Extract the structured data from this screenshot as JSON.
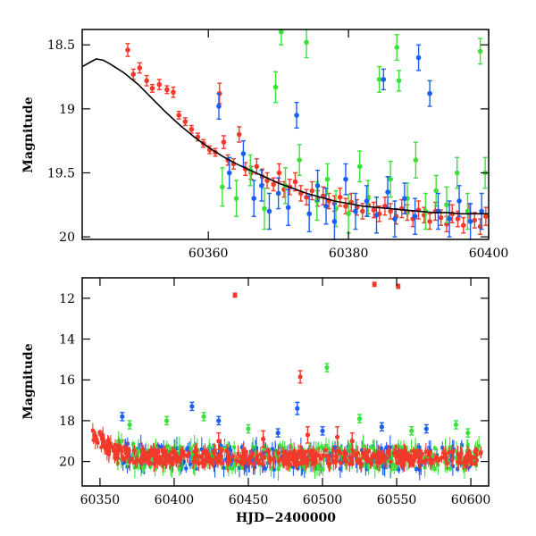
{
  "chart_data": [
    {
      "type": "scatter",
      "panel": "top",
      "title": "",
      "xlabel": "",
      "ylabel": "Magnitude",
      "xlim": [
        60342,
        60400
      ],
      "ylim": [
        20.02,
        18.38
      ],
      "y_inverted": true,
      "grid": false,
      "x_ticks": [
        {
          "value": 60360,
          "label": "60360"
        },
        {
          "value": 60380,
          "label": "60380"
        },
        {
          "value": 60400,
          "label": "60400"
        }
      ],
      "y_ticks": [
        {
          "value": 18.5,
          "label": "18.5"
        },
        {
          "value": 19,
          "label": "19"
        },
        {
          "value": 19.5,
          "label": "19.5"
        },
        {
          "value": 20,
          "label": "20"
        }
      ],
      "series_colors": {
        "red": "#f23a2a",
        "green": "#3be03b",
        "blue": "#1a5ef2",
        "model": "#000000"
      },
      "series": [
        {
          "color_key": "red",
          "points": [
            [
              60348.5,
              18.54,
              0.05
            ],
            [
              60349.3,
              18.73,
              0.04
            ],
            [
              60350.2,
              18.68,
              0.04
            ],
            [
              60351.2,
              18.78,
              0.04
            ],
            [
              60352.0,
              18.84,
              0.03
            ],
            [
              60353.0,
              18.81,
              0.04
            ],
            [
              60354.1,
              18.85,
              0.03
            ],
            [
              60355.0,
              18.87,
              0.04
            ],
            [
              60355.8,
              19.05,
              0.03
            ],
            [
              60356.7,
              19.1,
              0.03
            ],
            [
              60357.6,
              19.16,
              0.03
            ],
            [
              60358.5,
              19.22,
              0.03
            ],
            [
              60359.3,
              19.27,
              0.03
            ],
            [
              60360.2,
              19.32,
              0.03
            ],
            [
              60361.0,
              19.34,
              0.03
            ],
            [
              60361.6,
              18.88,
              0.08
            ],
            [
              60362.2,
              19.26,
              0.05
            ],
            [
              60362.8,
              19.4,
              0.04
            ],
            [
              60363.6,
              19.43,
              0.04
            ],
            [
              60364.4,
              19.2,
              0.06
            ],
            [
              60365.3,
              19.47,
              0.05
            ],
            [
              60366.1,
              19.5,
              0.05
            ],
            [
              60366.9,
              19.45,
              0.06
            ],
            [
              60367.7,
              19.53,
              0.06
            ],
            [
              60368.4,
              19.56,
              0.06
            ],
            [
              60369.3,
              19.59,
              0.05
            ],
            [
              60370.1,
              19.5,
              0.07
            ],
            [
              60370.8,
              19.63,
              0.06
            ],
            [
              60371.6,
              19.61,
              0.06
            ],
            [
              60372.4,
              19.57,
              0.07
            ],
            [
              60373.2,
              19.66,
              0.06
            ],
            [
              60374.0,
              19.69,
              0.06
            ],
            [
              60374.8,
              19.64,
              0.07
            ],
            [
              60375.6,
              19.7,
              0.06
            ],
            [
              60376.4,
              19.68,
              0.07
            ],
            [
              60377.2,
              19.72,
              0.06
            ],
            [
              60378.0,
              19.74,
              0.06
            ],
            [
              60378.8,
              19.69,
              0.07
            ],
            [
              60379.6,
              19.76,
              0.06
            ],
            [
              60380.4,
              19.73,
              0.07
            ],
            [
              60381.2,
              19.77,
              0.06
            ],
            [
              60382.0,
              19.8,
              0.06
            ],
            [
              60382.8,
              19.75,
              0.07
            ],
            [
              60383.6,
              19.79,
              0.06
            ],
            [
              60384.4,
              19.82,
              0.06
            ],
            [
              60385.2,
              19.76,
              0.07
            ],
            [
              60386.0,
              19.8,
              0.06
            ],
            [
              60386.8,
              19.84,
              0.06
            ],
            [
              60387.6,
              19.78,
              0.07
            ],
            [
              60388.4,
              19.81,
              0.06
            ],
            [
              60389.2,
              19.86,
              0.06
            ],
            [
              60390.0,
              19.79,
              0.07
            ],
            [
              60390.8,
              19.83,
              0.06
            ],
            [
              60391.6,
              19.88,
              0.06
            ],
            [
              60392.4,
              19.8,
              0.07
            ],
            [
              60393.2,
              19.85,
              0.06
            ],
            [
              60394.0,
              19.9,
              0.06
            ],
            [
              60394.8,
              19.82,
              0.07
            ],
            [
              60395.6,
              19.86,
              0.06
            ],
            [
              60396.4,
              19.91,
              0.06
            ],
            [
              60397.2,
              19.81,
              0.07
            ],
            [
              60398.0,
              19.87,
              0.06
            ],
            [
              60398.8,
              19.92,
              0.06
            ],
            [
              60399.6,
              19.84,
              0.07
            ]
          ]
        },
        {
          "color_key": "green",
          "points": [
            [
              60362.0,
              19.61,
              0.15
            ],
            [
              60364.0,
              19.7,
              0.14
            ],
            [
              60366.0,
              19.48,
              0.12
            ],
            [
              60368.0,
              19.78,
              0.16
            ],
            [
              60369.6,
              18.83,
              0.12
            ],
            [
              60370.4,
              18.4,
              0.1
            ],
            [
              60371.0,
              19.6,
              0.14
            ],
            [
              60373.0,
              19.4,
              0.12
            ],
            [
              60374.0,
              18.48,
              0.12
            ],
            [
              60375.5,
              19.72,
              0.15
            ],
            [
              60377.0,
              19.55,
              0.12
            ],
            [
              60378.2,
              19.78,
              0.14
            ],
            [
              60380.0,
              19.82,
              0.15
            ],
            [
              60381.6,
              19.45,
              0.12
            ],
            [
              60382.8,
              19.7,
              0.14
            ],
            [
              60384.4,
              18.77,
              0.1
            ],
            [
              60386.0,
              19.55,
              0.14
            ],
            [
              60386.9,
              18.52,
              0.1
            ],
            [
              60387.2,
              18.78,
              0.08
            ],
            [
              60388.4,
              19.7,
              0.12
            ],
            [
              60389.6,
              19.4,
              0.14
            ],
            [
              60391.0,
              19.8,
              0.14
            ],
            [
              60392.5,
              19.64,
              0.12
            ],
            [
              60394.0,
              19.75,
              0.14
            ],
            [
              60395.5,
              19.5,
              0.12
            ],
            [
              60397.0,
              19.8,
              0.14
            ],
            [
              60398.8,
              18.55,
              0.1
            ],
            [
              60399.5,
              19.5,
              0.12
            ]
          ]
        },
        {
          "color_key": "blue",
          "points": [
            [
              60361.5,
              18.98,
              0.1
            ],
            [
              60363.0,
              19.5,
              0.12
            ],
            [
              60365.0,
              19.35,
              0.1
            ],
            [
              60366.5,
              19.7,
              0.14
            ],
            [
              60367.6,
              19.6,
              0.12
            ],
            [
              60368.7,
              19.8,
              0.14
            ],
            [
              60370.0,
              19.66,
              0.12
            ],
            [
              60371.4,
              19.77,
              0.14
            ],
            [
              60372.6,
              19.05,
              0.1
            ],
            [
              60374.4,
              19.82,
              0.14
            ],
            [
              60375.6,
              19.6,
              0.12
            ],
            [
              60376.8,
              19.76,
              0.14
            ],
            [
              60378.0,
              19.88,
              0.14
            ],
            [
              60379.6,
              19.55,
              0.12
            ],
            [
              60381.0,
              19.8,
              0.14
            ],
            [
              60382.6,
              19.72,
              0.12
            ],
            [
              60384.0,
              19.83,
              0.14
            ],
            [
              60385.0,
              18.77,
              0.08
            ],
            [
              60385.6,
              19.65,
              0.12
            ],
            [
              60386.6,
              19.86,
              0.14
            ],
            [
              60388.0,
              19.7,
              0.12
            ],
            [
              60389.5,
              19.84,
              0.14
            ],
            [
              60390.0,
              18.6,
              0.1
            ],
            [
              60391.6,
              18.88,
              0.1
            ],
            [
              60392.8,
              19.8,
              0.14
            ],
            [
              60394.4,
              19.86,
              0.14
            ],
            [
              60395.8,
              19.72,
              0.12
            ],
            [
              60397.4,
              19.88,
              0.14
            ],
            [
              60399.0,
              19.8,
              0.14
            ]
          ]
        }
      ],
      "model_curve": [
        [
          60342.0,
          18.67
        ],
        [
          60343.0,
          18.64
        ],
        [
          60344.0,
          18.61
        ],
        [
          60345.0,
          18.62
        ],
        [
          60346.0,
          18.65
        ],
        [
          60348.0,
          18.72
        ],
        [
          60350.0,
          18.81
        ],
        [
          60352.0,
          18.92
        ],
        [
          60354.0,
          19.03
        ],
        [
          60356.0,
          19.13
        ],
        [
          60358.0,
          19.22
        ],
        [
          60360.0,
          19.3
        ],
        [
          60362.0,
          19.37
        ],
        [
          60364.0,
          19.43
        ],
        [
          60366.0,
          19.48
        ],
        [
          60368.0,
          19.53
        ],
        [
          60370.0,
          19.58
        ],
        [
          60372.0,
          19.62
        ],
        [
          60374.0,
          19.66
        ],
        [
          60376.0,
          19.69
        ],
        [
          60378.0,
          19.72
        ],
        [
          60380.0,
          19.74
        ],
        [
          60382.0,
          19.76
        ],
        [
          60384.0,
          19.77
        ],
        [
          60386.0,
          19.78
        ],
        [
          60388.0,
          19.79
        ],
        [
          60390.0,
          19.8
        ],
        [
          60392.0,
          19.81
        ],
        [
          60394.0,
          19.81
        ],
        [
          60396.0,
          19.82
        ],
        [
          60398.0,
          19.82
        ],
        [
          60400.0,
          19.82
        ]
      ]
    },
    {
      "type": "scatter",
      "panel": "bottom",
      "title": "",
      "xlabel": "HJD−2400000",
      "ylabel": "Magnitude",
      "xlim": [
        60338,
        60612
      ],
      "ylim": [
        21.2,
        11.0
      ],
      "y_inverted": true,
      "grid": false,
      "x_ticks": [
        {
          "value": 60350,
          "label": "60350"
        },
        {
          "value": 60400,
          "label": "60400"
        },
        {
          "value": 60450,
          "label": "60450"
        },
        {
          "value": 60500,
          "label": "60500"
        },
        {
          "value": 60550,
          "label": "60550"
        },
        {
          "value": 60600,
          "label": "60600"
        }
      ],
      "y_ticks": [
        {
          "value": 12,
          "label": "12"
        },
        {
          "value": 14,
          "label": "14"
        },
        {
          "value": 16,
          "label": "16"
        },
        {
          "value": 18,
          "label": "18"
        },
        {
          "value": 20,
          "label": "20"
        }
      ],
      "dense_trend": [
        [
          60345,
          18.6
        ],
        [
          60350,
          18.9
        ],
        [
          60355,
          19.3
        ],
        [
          60360,
          19.5
        ],
        [
          60370,
          19.7
        ],
        [
          60380,
          19.8
        ],
        [
          60400,
          19.8
        ],
        [
          60450,
          19.8
        ],
        [
          60500,
          19.8
        ],
        [
          60550,
          19.8
        ],
        [
          60605,
          19.8
        ]
      ],
      "series": [
        {
          "color_key": "red",
          "points": [
            [
              60441,
              11.85,
              0.1
            ],
            [
              60485,
              15.85,
              0.3
            ],
            [
              60535,
              11.32,
              0.1
            ],
            [
              60551,
              11.42,
              0.1
            ],
            [
              60490,
              18.7,
              0.4
            ],
            [
              60510,
              18.8,
              0.5
            ],
            [
              60520,
              19.0,
              0.4
            ],
            [
              60460,
              18.9,
              0.4
            ],
            [
              60430,
              19.0,
              0.4
            ]
          ]
        },
        {
          "color_key": "green",
          "points": [
            [
              60370,
              18.2,
              0.2
            ],
            [
              60395,
              18.0,
              0.2
            ],
            [
              60420,
              17.8,
              0.2
            ],
            [
              60503,
              15.4,
              0.2
            ],
            [
              60525,
              17.9,
              0.2
            ],
            [
              60590,
              18.2,
              0.2
            ],
            [
              60598,
              18.6,
              0.2
            ],
            [
              60450,
              18.4,
              0.2
            ],
            [
              60560,
              18.5,
              0.2
            ]
          ]
        },
        {
          "color_key": "blue",
          "points": [
            [
              60365,
              17.8,
              0.2
            ],
            [
              60412,
              17.3,
              0.2
            ],
            [
              60430,
              18.0,
              0.2
            ],
            [
              60483,
              17.4,
              0.3
            ],
            [
              60540,
              18.3,
              0.2
            ],
            [
              60570,
              18.4,
              0.2
            ],
            [
              60470,
              18.6,
              0.2
            ],
            [
              60500,
              18.5,
              0.2
            ]
          ]
        }
      ]
    }
  ]
}
